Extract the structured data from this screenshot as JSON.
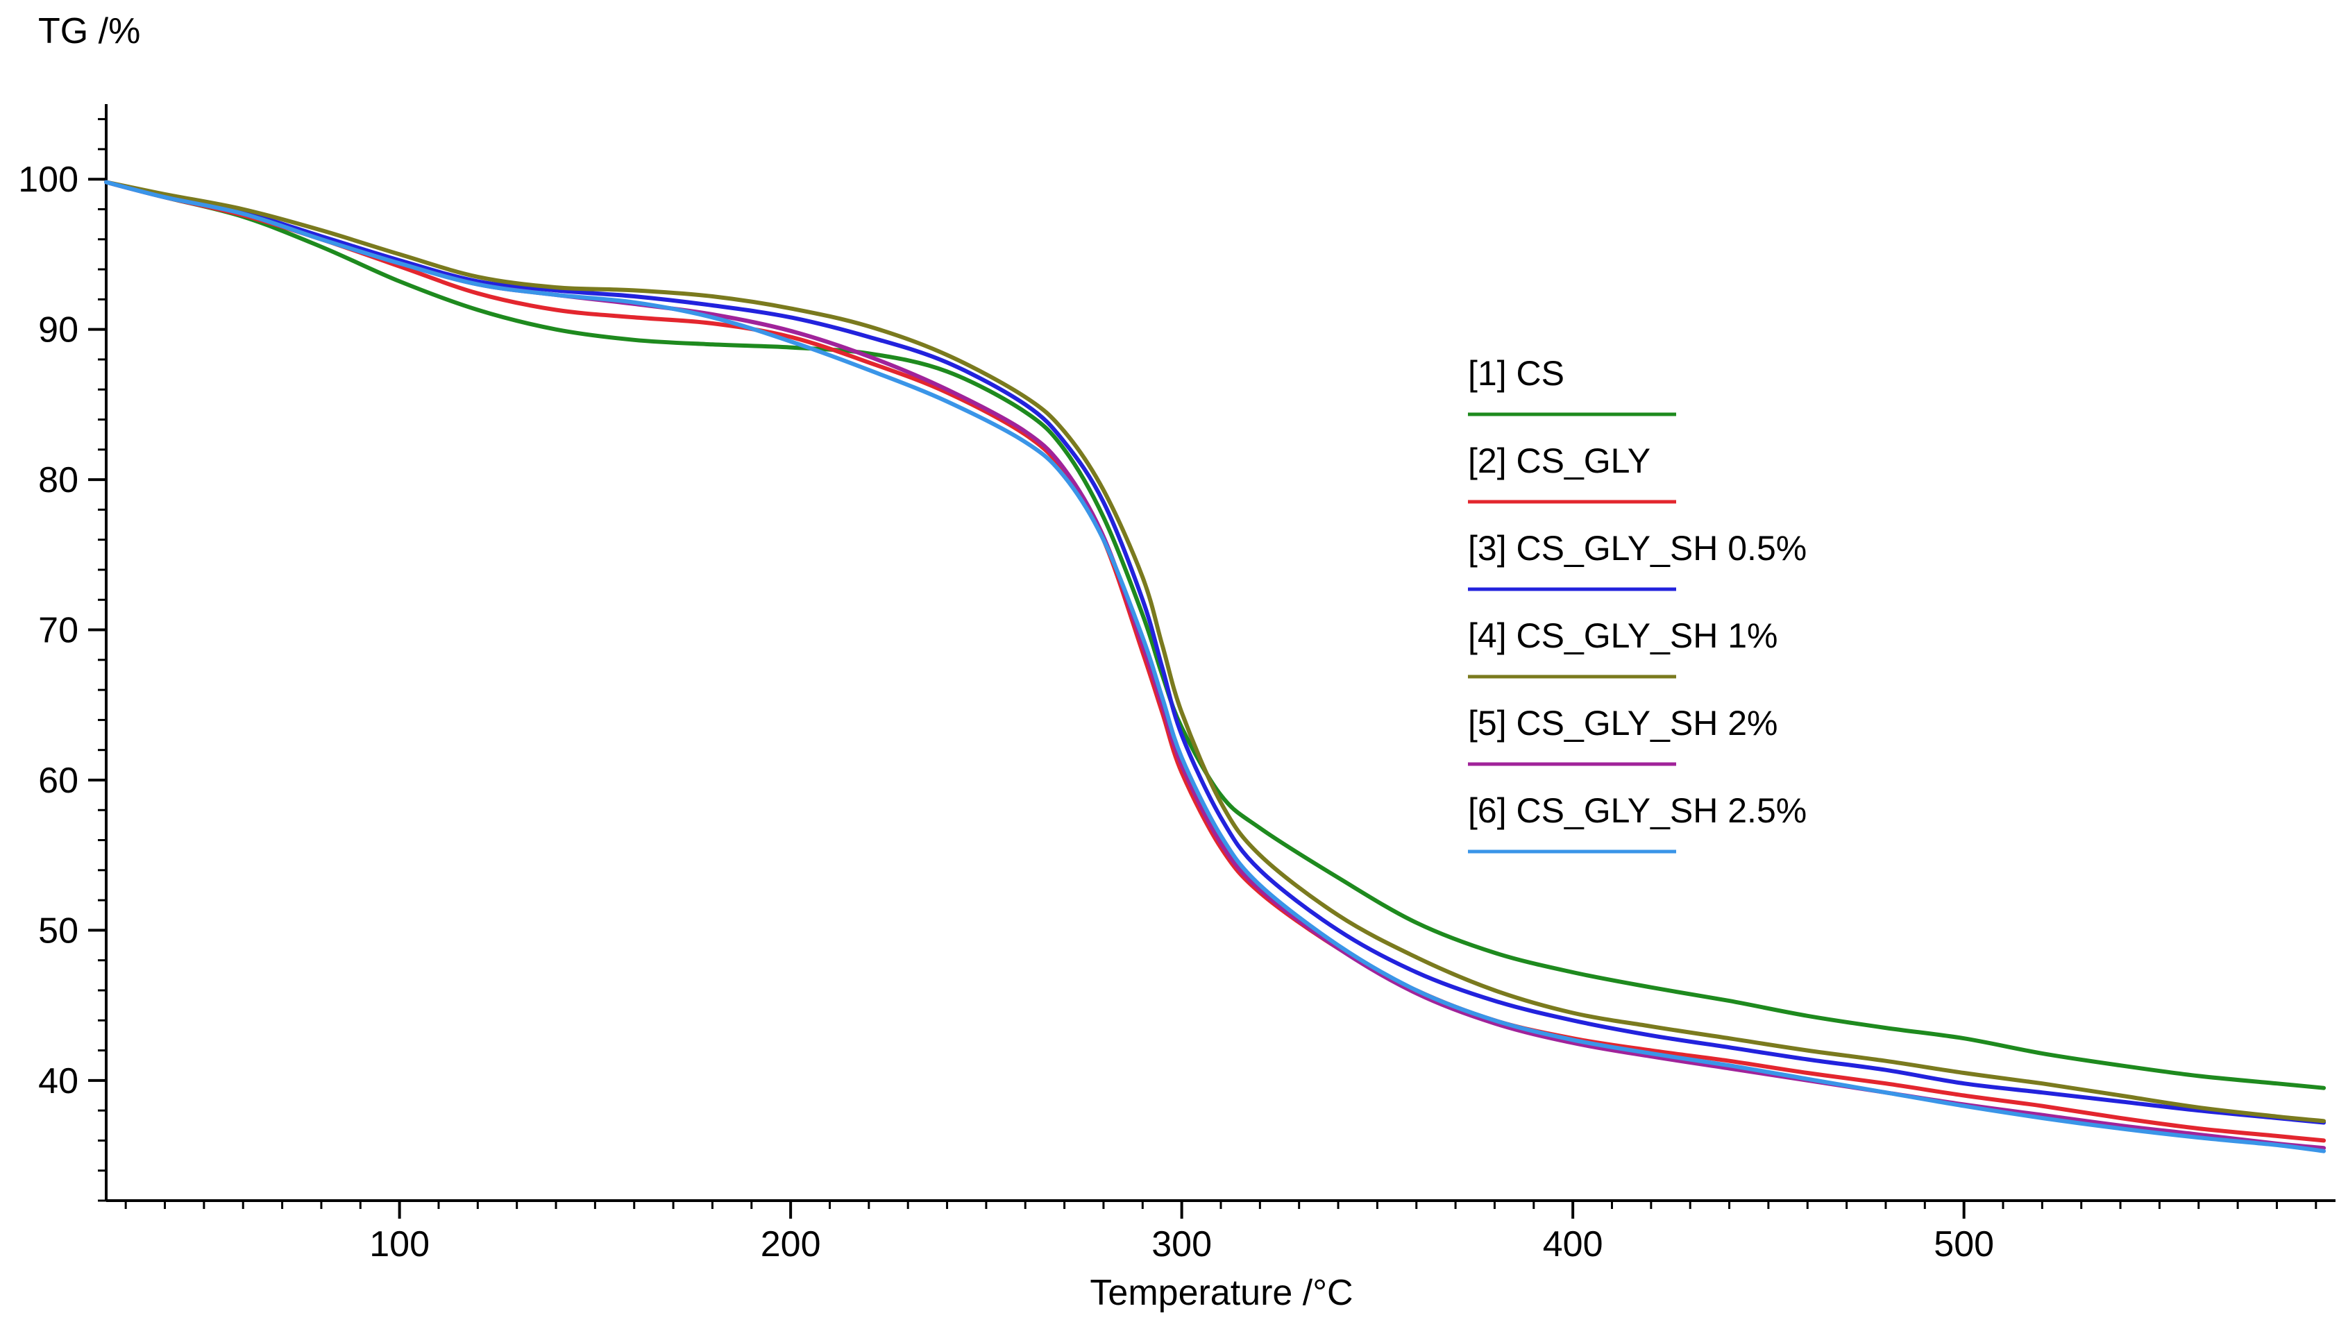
{
  "chart_data": {
    "type": "line",
    "title": "",
    "ylabel": "TG /%",
    "xlabel": "Temperature /°C",
    "xlim": [
      25,
      595
    ],
    "ylim": [
      32,
      105
    ],
    "xticks": [
      100,
      200,
      300,
      400,
      500
    ],
    "yticks": [
      40,
      50,
      60,
      70,
      80,
      90,
      100
    ],
    "grid": false,
    "legend_position": "right-center",
    "series": [
      {
        "name": "[1] CS",
        "color": "#1e8a1e",
        "x": [
          25,
          40,
          60,
          80,
          100,
          120,
          140,
          160,
          180,
          200,
          220,
          240,
          260,
          270,
          280,
          290,
          295,
          300,
          310,
          320,
          340,
          360,
          380,
          400,
          420,
          440,
          460,
          480,
          500,
          520,
          540,
          560,
          580,
          592
        ],
        "y": [
          99.8,
          98.8,
          97.5,
          95.5,
          93.2,
          91.3,
          90.0,
          89.3,
          89.0,
          88.8,
          88.4,
          87.2,
          84.5,
          82.0,
          77.5,
          71.0,
          67.0,
          63.5,
          59.0,
          56.8,
          53.5,
          50.5,
          48.5,
          47.2,
          46.2,
          45.3,
          44.3,
          43.5,
          42.8,
          41.8,
          41.0,
          40.3,
          39.8,
          39.5
        ]
      },
      {
        "name": "[2] CS_GLY",
        "color": "#e3262e",
        "x": [
          25,
          40,
          60,
          80,
          100,
          120,
          140,
          160,
          180,
          200,
          220,
          240,
          260,
          270,
          280,
          290,
          295,
          300,
          310,
          320,
          340,
          360,
          380,
          400,
          420,
          440,
          460,
          480,
          500,
          520,
          540,
          560,
          580,
          592
        ],
        "y": [
          99.8,
          98.8,
          97.6,
          96.0,
          94.2,
          92.4,
          91.3,
          90.8,
          90.4,
          89.5,
          87.8,
          85.8,
          83.0,
          80.5,
          76.0,
          68.5,
          64.5,
          60.5,
          55.5,
          52.5,
          48.8,
          46.0,
          44.0,
          42.8,
          42.0,
          41.3,
          40.5,
          39.8,
          39.0,
          38.3,
          37.5,
          36.8,
          36.3,
          36.0
        ]
      },
      {
        "name": "[3] CS_GLY_SH 0.5%",
        "color": "#2222dd",
        "x": [
          25,
          40,
          60,
          80,
          100,
          120,
          140,
          160,
          180,
          200,
          220,
          240,
          260,
          270,
          280,
          290,
          295,
          300,
          310,
          320,
          340,
          360,
          380,
          400,
          420,
          440,
          460,
          480,
          500,
          520,
          540,
          560,
          580,
          592
        ],
        "y": [
          99.8,
          98.9,
          97.8,
          96.2,
          94.6,
          93.2,
          92.6,
          92.2,
          91.6,
          90.8,
          89.5,
          87.8,
          85.0,
          82.5,
          78.5,
          72.0,
          67.5,
          63.0,
          57.5,
          54.0,
          50.0,
          47.2,
          45.3,
          44.0,
          43.0,
          42.2,
          41.4,
          40.7,
          39.8,
          39.2,
          38.6,
          38.0,
          37.5,
          37.2
        ]
      },
      {
        "name": "[4] CS_GLY_SH 1%",
        "color": "#7a7a1e",
        "x": [
          25,
          40,
          60,
          80,
          100,
          120,
          140,
          160,
          180,
          200,
          220,
          240,
          260,
          270,
          280,
          290,
          295,
          300,
          310,
          320,
          340,
          360,
          380,
          400,
          420,
          440,
          460,
          480,
          500,
          520,
          540,
          560,
          580,
          592
        ],
        "y": [
          99.8,
          99.0,
          98.0,
          96.6,
          95.0,
          93.5,
          92.8,
          92.6,
          92.2,
          91.4,
          90.2,
          88.3,
          85.5,
          83.2,
          79.3,
          73.5,
          69.0,
          64.5,
          58.5,
          55.0,
          51.0,
          48.2,
          46.0,
          44.5,
          43.6,
          42.8,
          42.0,
          41.3,
          40.5,
          39.8,
          39.0,
          38.2,
          37.6,
          37.3
        ]
      },
      {
        "name": "[5] CS_GLY_SH 2%",
        "color": "#a0239a",
        "x": [
          25,
          40,
          60,
          80,
          100,
          120,
          140,
          160,
          180,
          200,
          220,
          240,
          260,
          270,
          280,
          290,
          295,
          300,
          310,
          320,
          340,
          360,
          380,
          400,
          420,
          440,
          460,
          480,
          500,
          520,
          540,
          560,
          580,
          592
        ],
        "y": [
          99.8,
          98.8,
          97.7,
          96.0,
          94.4,
          93.0,
          92.3,
          91.7,
          91.0,
          89.9,
          88.2,
          86.0,
          83.2,
          80.7,
          76.2,
          69.0,
          65.0,
          61.0,
          55.8,
          52.7,
          48.8,
          45.8,
          43.8,
          42.5,
          41.6,
          40.8,
          40.0,
          39.2,
          38.4,
          37.7,
          37.0,
          36.4,
          35.8,
          35.5
        ]
      },
      {
        "name": "[6] CS_GLY_SH 2.5%",
        "color": "#3a95e8",
        "x": [
          25,
          40,
          60,
          80,
          100,
          120,
          140,
          160,
          180,
          200,
          220,
          240,
          260,
          270,
          280,
          290,
          295,
          300,
          310,
          320,
          340,
          360,
          380,
          400,
          420,
          440,
          460,
          480,
          500,
          520,
          540,
          560,
          580,
          592
        ],
        "y": [
          99.8,
          98.8,
          97.7,
          96.0,
          94.4,
          93.0,
          92.3,
          91.8,
          90.8,
          89.2,
          87.3,
          85.2,
          82.5,
          80.2,
          76.0,
          69.5,
          65.5,
          61.5,
          56.3,
          53.0,
          49.0,
          46.0,
          44.0,
          42.7,
          41.8,
          41.0,
          40.1,
          39.2,
          38.3,
          37.5,
          36.8,
          36.2,
          35.7,
          35.3
        ]
      }
    ]
  }
}
